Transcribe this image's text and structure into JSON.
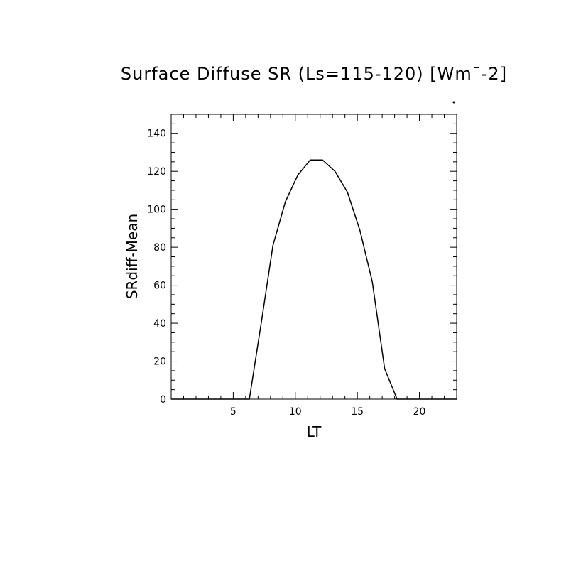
{
  "chart_data": {
    "type": "line",
    "title": "Surface Diffuse SR (Ls=115-120) [Wm¯-2]",
    "xlabel": "LT",
    "ylabel": "SRdiff-Mean",
    "xlim": [
      0,
      23
    ],
    "ylim": [
      0,
      150
    ],
    "x_ticks": [
      5,
      10,
      15,
      20
    ],
    "y_ticks": [
      0,
      20,
      40,
      60,
      80,
      100,
      120,
      140
    ],
    "grid": false,
    "legend": "none",
    "series": [
      {
        "x": [
          0,
          6.3,
          7.3,
          8.2,
          9.2,
          10.2,
          11.2,
          12.2,
          13.2,
          14.2,
          15.2,
          16.2,
          17.2,
          18.2,
          19.2,
          20.2,
          21.2,
          22.2,
          23
        ],
        "values": [
          0,
          0,
          42,
          81,
          104,
          118,
          126,
          126,
          120,
          109,
          89,
          62,
          16,
          0,
          0,
          0,
          0,
          0,
          0
        ]
      }
    ]
  }
}
